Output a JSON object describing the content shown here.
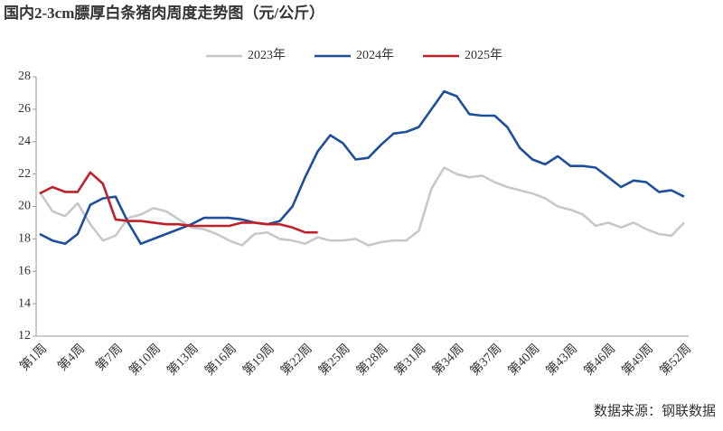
{
  "chart_data": {
    "type": "line",
    "title": "国内2-3cm膘厚白条猪肉周度走势图（元/公斤）",
    "source": "数据来源：钢联数据",
    "categories": [
      "第1周",
      null,
      null,
      "第4周",
      null,
      null,
      "第7周",
      null,
      null,
      "第10周",
      null,
      null,
      "第13周",
      null,
      null,
      "第16周",
      null,
      null,
      "第19周",
      null,
      null,
      "第22周",
      null,
      null,
      "第25周",
      null,
      null,
      "第28周",
      null,
      null,
      "第31周",
      null,
      null,
      "第34周",
      null,
      null,
      "第37周",
      null,
      null,
      "第40周",
      null,
      null,
      "第43周",
      null,
      null,
      "第46周",
      null,
      null,
      "第49周",
      null,
      null,
      "第52周"
    ],
    "series": [
      {
        "name": "2023年",
        "color": "#c8c8c8",
        "values": [
          20.9,
          19.7,
          19.4,
          20.2,
          18.9,
          17.9,
          18.2,
          19.3,
          19.5,
          19.9,
          19.7,
          19.2,
          18.7,
          18.6,
          18.3,
          17.9,
          17.6,
          18.3,
          18.4,
          18.0,
          17.9,
          17.7,
          18.1,
          17.9,
          17.9,
          18.0,
          17.6,
          17.8,
          17.9,
          17.9,
          18.5,
          21.1,
          22.4,
          22.0,
          21.8,
          21.9,
          21.5,
          21.2,
          21.0,
          20.8,
          20.5,
          20.0,
          19.8,
          19.5,
          18.8,
          19.0,
          18.7,
          19.0,
          18.6,
          18.3,
          18.2,
          19.0
        ]
      },
      {
        "name": "2024年",
        "color": "#1f4e9a",
        "values": [
          18.3,
          17.9,
          17.7,
          18.3,
          20.1,
          20.5,
          20.6,
          19.0,
          17.7,
          18.0,
          18.3,
          18.6,
          18.9,
          19.3,
          19.3,
          19.3,
          19.2,
          19.0,
          18.9,
          19.1,
          20.0,
          21.8,
          23.4,
          24.4,
          23.9,
          22.9,
          23.0,
          23.8,
          24.5,
          24.6,
          24.9,
          26.0,
          27.1,
          26.8,
          25.7,
          25.6,
          25.6,
          24.9,
          23.6,
          22.9,
          22.6,
          23.1,
          22.5,
          22.5,
          22.4,
          21.8,
          21.2,
          21.6,
          21.5,
          20.9,
          21.0,
          20.6
        ]
      },
      {
        "name": "2025年",
        "color": "#c0202a",
        "values": [
          20.8,
          21.2,
          20.9,
          20.9,
          22.1,
          21.4,
          19.2,
          19.1,
          19.1,
          19.0,
          18.9,
          18.9,
          18.8,
          18.8,
          18.8,
          18.8,
          19.0,
          19.0,
          18.9,
          18.9,
          18.7,
          18.4,
          18.4,
          null,
          null,
          null,
          null,
          null,
          null,
          null,
          null,
          null,
          null,
          null,
          null,
          null,
          null,
          null,
          null,
          null,
          null,
          null,
          null,
          null,
          null,
          null,
          null,
          null,
          null,
          null,
          null,
          null
        ]
      }
    ],
    "ylim": [
      12,
      28
    ],
    "yticks": [
      12,
      14,
      16,
      18,
      20,
      22,
      24,
      26,
      28
    ],
    "grid": false,
    "legend": "top"
  }
}
